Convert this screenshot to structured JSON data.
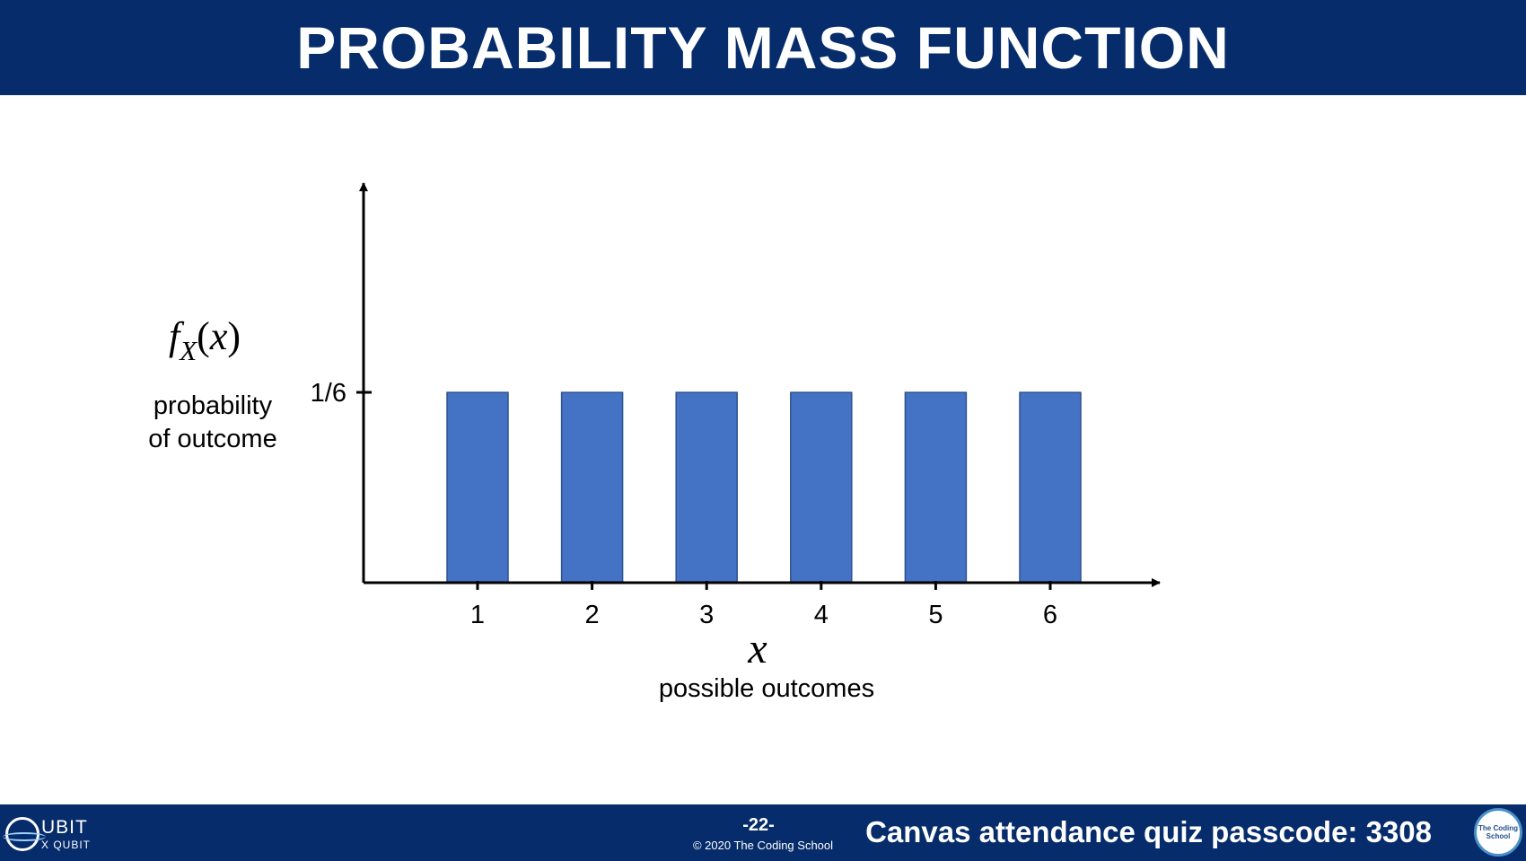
{
  "header": {
    "title": "PROBABILITY MASS FUNCTION"
  },
  "chart_data": {
    "type": "bar",
    "categories": [
      "1",
      "2",
      "3",
      "4",
      "5",
      "6"
    ],
    "values": [
      0.1667,
      0.1667,
      0.1667,
      0.1667,
      0.1667,
      0.1667
    ],
    "ytick_label": "1/6",
    "ytick_value": 0.1667,
    "ylim": [
      0,
      0.35
    ],
    "ylabel_math": {
      "f": "f",
      "sub": "X",
      "open": "(",
      "x": "x",
      "close": ")"
    },
    "ylabel_text_line1": "probability",
    "ylabel_text_line2": "of outcome",
    "xlabel_math": "x",
    "xlabel_text": "possible outcomes",
    "bar_color": "#4472c4",
    "bar_edge_color": "#2f528f",
    "grid": false
  },
  "footer": {
    "logo_main": "UBIT",
    "logo_sub": "X QUBIT",
    "page_number": "-22-",
    "copyright": "© 2020 The Coding School",
    "passcode_text": "Canvas attendance quiz passcode: 3308",
    "seal_text": "The Coding School"
  },
  "colors": {
    "brand": "#062c6b",
    "bars": "#4472c4"
  }
}
